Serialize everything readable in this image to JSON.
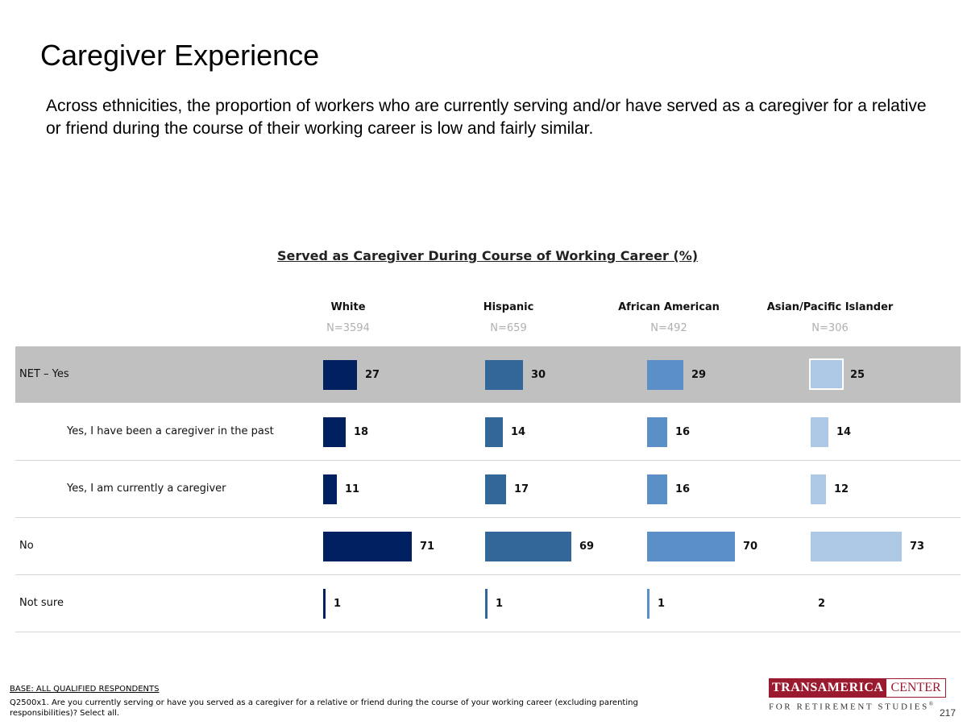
{
  "page": {
    "title": "Caregiver Experience",
    "subtitle": "Across ethnicities, the proportion of workers who are currently serving and/or have served as a caregiver for a relative or friend during the course of their working career is low and fairly similar.",
    "page_number": "217"
  },
  "footer": {
    "base": "BASE: ALL QUALIFIED RESPONDENTS",
    "question": "Q2500x1. Are you currently serving or have you served as a caregiver for a relative or friend during the course of your working career (excluding parenting responsibilities)? Select all."
  },
  "logo": {
    "left": "TRANSAMERICA",
    "right": "CENTER",
    "bottom": "FOR RETIREMENT STUDIES",
    "mark": "®"
  },
  "chart_data": {
    "type": "bar",
    "orientation": "horizontal",
    "title": "Served as Caregiver During Course of Working Career (%)",
    "unit": "%",
    "series": [
      {
        "name": "White",
        "n": "N=3594",
        "color": "#002060",
        "values": [
          27,
          18,
          11,
          71,
          1
        ]
      },
      {
        "name": "Hispanic",
        "n": "N=659",
        "color": "#336699",
        "values": [
          30,
          14,
          17,
          69,
          1
        ]
      },
      {
        "name": "African American",
        "n": "N=492",
        "color": "#5b8fc8",
        "values": [
          29,
          16,
          16,
          70,
          1
        ]
      },
      {
        "name": "Asian/Pacific Islander",
        "n": "N=306",
        "color": "#adc8e4",
        "values": [
          25,
          14,
          12,
          73,
          2
        ]
      }
    ],
    "categories": [
      {
        "label": "NET – Yes",
        "indent": false,
        "highlight": true
      },
      {
        "label": "Yes, I have been a caregiver in the past",
        "indent": true,
        "highlight": false
      },
      {
        "label": "Yes, I am currently a caregiver",
        "indent": true,
        "highlight": false
      },
      {
        "label": "No",
        "indent": false,
        "highlight": false
      },
      {
        "label": "Not sure",
        "indent": false,
        "highlight": false
      }
    ]
  }
}
